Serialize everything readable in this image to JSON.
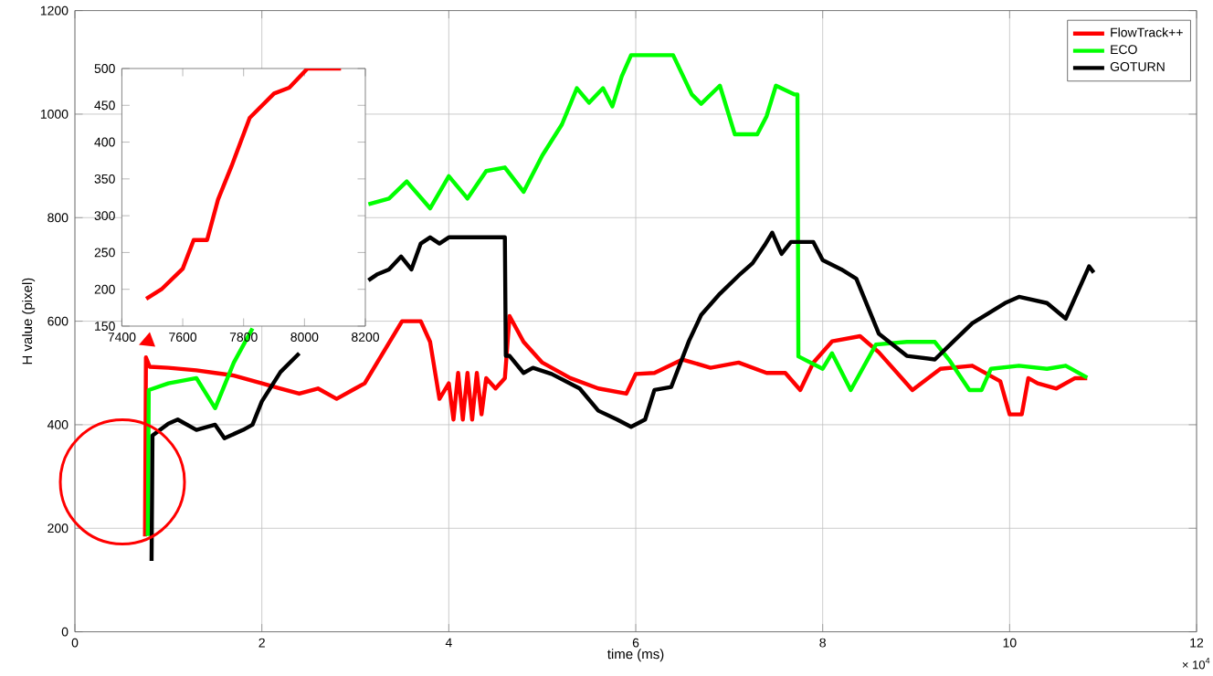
{
  "chart_data": [
    {
      "type": "line",
      "xlabel": "time (ms)",
      "ylabel": "H value (pixel)",
      "xlim": [
        0,
        12
      ],
      "ylim": [
        0,
        1200
      ],
      "xticks": [
        0,
        2,
        4,
        6,
        8,
        10,
        12
      ],
      "yticks": [
        0,
        200,
        400,
        600,
        800,
        1000,
        1200
      ],
      "grid": true,
      "legend": "top right",
      "annotations": [
        "× 10$^{4}$"
      ],
      "series": [
        {
          "name": "FlowTrack++",
          "color": "#ff0000",
          "x": [
            0.75,
            0.76,
            0.8,
            1.0,
            1.3,
            1.5,
            1.7,
            2.0,
            2.2,
            2.4,
            2.6,
            2.8,
            3.0,
            3.1,
            3.3,
            3.5,
            3.7,
            3.8,
            3.9,
            4.0,
            4.05,
            4.1,
            4.15,
            4.2,
            4.25,
            4.3,
            4.35,
            4.4,
            4.5,
            4.6,
            4.65,
            4.8,
            5.0,
            5.3,
            5.6,
            5.9,
            6.0,
            6.2,
            6.5,
            6.8,
            7.1,
            7.4,
            7.6,
            7.76,
            7.9,
            8.1,
            8.4,
            8.6,
            8.96,
            9.26,
            9.6,
            9.9,
            10.0,
            10.13,
            10.2,
            10.3,
            10.5,
            10.7,
            10.83
          ],
          "values": [
            184,
            530,
            512,
            510,
            505,
            500,
            495,
            480,
            470,
            460,
            470,
            450,
            470,
            480,
            540,
            600,
            600,
            560,
            450,
            480,
            410,
            500,
            410,
            500,
            410,
            500,
            420,
            490,
            470,
            490,
            610,
            560,
            520,
            490,
            470,
            460,
            498,
            500,
            526,
            510,
            520,
            500,
            500,
            467,
            520,
            561,
            571,
            540,
            467,
            508,
            514,
            484,
            420,
            420,
            490,
            480,
            470,
            490,
            490
          ]
        },
        {
          "name": "ECO",
          "color": "#00ff00",
          "x": [
            0.78,
            0.79,
            1.0,
            1.3,
            1.5,
            1.7,
            1.9,
            2.5,
            3.14,
            3.36,
            3.55,
            3.8,
            4.0,
            4.2,
            4.4,
            4.6,
            4.8,
            5.0,
            5.21,
            5.37,
            5.5,
            5.65,
            5.75,
            5.85,
            5.95,
            6.1,
            6.4,
            6.6,
            6.7,
            6.9,
            7.06,
            7.3,
            7.4,
            7.5,
            7.7,
            7.73,
            7.74,
            8.0,
            8.1,
            8.3,
            8.57,
            8.9,
            9.2,
            9.35,
            9.57,
            9.7,
            9.8,
            10.1,
            10.4,
            10.6,
            10.83
          ],
          "values": [
            185,
            467,
            480,
            490,
            432,
            520,
            586,
            null,
            826,
            837,
            870,
            818,
            880,
            837,
            890,
            897,
            850,
            920,
            980,
            1050,
            1022,
            1050,
            1015,
            1073,
            1114,
            1114,
            1114,
            1038,
            1020,
            1055,
            961,
            961,
            996,
            1055,
            1038,
            1038,
            532,
            508,
            538,
            467,
            555,
            560,
            560,
            526,
            467,
            467,
            508,
            514,
            508,
            514,
            491
          ]
        },
        {
          "name": "GOTURN",
          "color": "#000000",
          "x": [
            0.82,
            0.83,
            1.0,
            1.1,
            1.3,
            1.5,
            1.6,
            1.8,
            1.9,
            2.0,
            2.2,
            2.4,
            2.9,
            3.14,
            3.23,
            3.36,
            3.49,
            3.6,
            3.7,
            3.8,
            3.9,
            4.0,
            4.3,
            4.6,
            4.61,
            4.65,
            4.8,
            4.9,
            5.1,
            5.4,
            5.6,
            5.8,
            5.95,
            6.1,
            6.2,
            6.38,
            6.57,
            6.7,
            6.9,
            7.1,
            7.25,
            7.38,
            7.46,
            7.56,
            7.66,
            7.9,
            8.0,
            8.2,
            8.36,
            8.6,
            8.9,
            9.2,
            9.4,
            9.6,
            9.95,
            10.1,
            10.4,
            10.6,
            10.85,
            10.9
          ],
          "values": [
            137,
            379,
            402,
            410,
            390,
            400,
            374,
            390,
            400,
            445,
            502,
            538,
            null,
            679,
            690,
            700,
            725,
            700,
            750,
            762,
            750,
            762,
            762,
            762,
            533,
            533,
            500,
            510,
            498,
            470,
            427,
            410,
            396,
            410,
            467,
            473,
            562,
            612,
            653,
            688,
            712,
            747,
            771,
            730,
            753,
            753,
            718,
            700,
            682,
            576,
            533,
            526,
            561,
            596,
            635,
            647,
            635,
            605,
            706,
            694
          ]
        }
      ]
    },
    {
      "type": "line",
      "xlim": [
        7400,
        8200
      ],
      "ylim": [
        150,
        500
      ],
      "xticks": [
        7400,
        7600,
        7800,
        8000,
        8200
      ],
      "yticks": [
        150,
        200,
        250,
        300,
        350,
        400,
        450,
        500
      ],
      "series": [
        {
          "color": "#ff0000",
          "x": [
            7480,
            7530,
            7600,
            7636,
            7680,
            7716,
            7760,
            7820,
            7900,
            7950,
            8010,
            8120
          ],
          "values": [
            187,
            200,
            228,
            267,
            267,
            322,
            367,
            433,
            466,
            474,
            500,
            500
          ]
        }
      ]
    }
  ]
}
